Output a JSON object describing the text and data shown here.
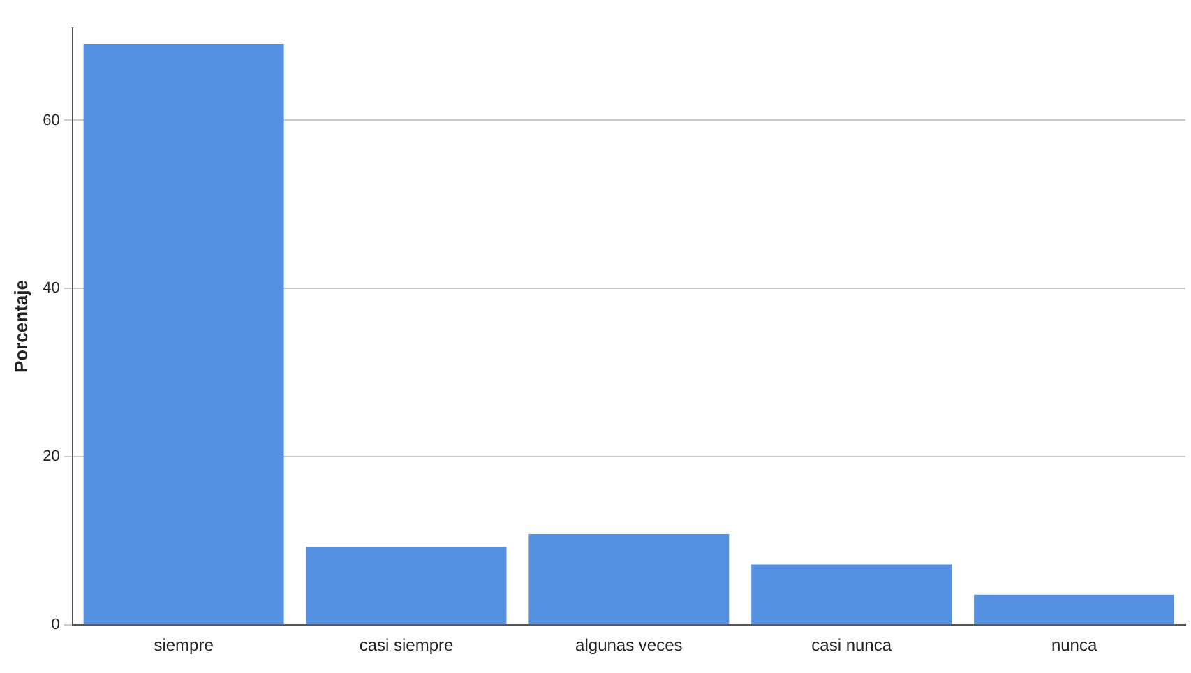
{
  "chart_data": {
    "type": "bar",
    "ylabel": "Porcentaje",
    "categories": [
      "siempre",
      "casi siempre",
      "algunas veces",
      "casi nunca",
      "nunca"
    ],
    "values": [
      69.1,
      9.3,
      10.8,
      7.2,
      3.6
    ],
    "color": "#5591e0",
    "ylim": [
      0,
      71
    ],
    "yticks": [
      0,
      20,
      40,
      60
    ],
    "grid": "y"
  }
}
